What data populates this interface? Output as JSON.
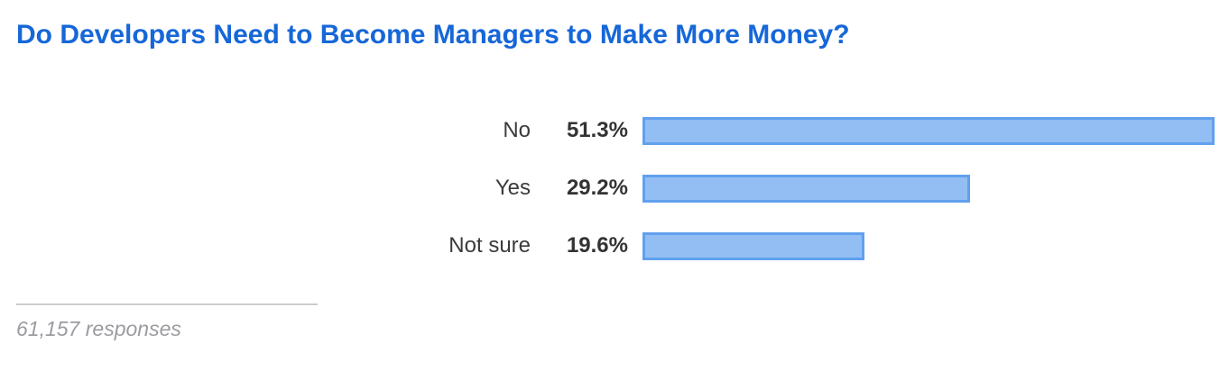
{
  "title": "Do Developers Need to Become Managers to Make More Money?",
  "footer": {
    "responses": "61,157 responses"
  },
  "colors": {
    "title": "#1667d8",
    "bar_fill": "#92bef3",
    "bar_border": "#61a0ee",
    "label_text": "#3b3b3b",
    "footer_text": "#9b9ba1",
    "divider": "#cccccc"
  },
  "chart_data": {
    "type": "bar",
    "orientation": "horizontal",
    "title": "Do Developers Need to Become Managers to Make More Money?",
    "categories": [
      "No",
      "Yes",
      "Not sure"
    ],
    "values": [
      51.3,
      29.2,
      19.6
    ],
    "value_labels": [
      "51.3%",
      "29.2%",
      "19.6%"
    ],
    "xlabel": "",
    "ylabel": "",
    "xlim": [
      0,
      100
    ],
    "grid": false,
    "legend": false,
    "annotation": "61,157 responses"
  }
}
